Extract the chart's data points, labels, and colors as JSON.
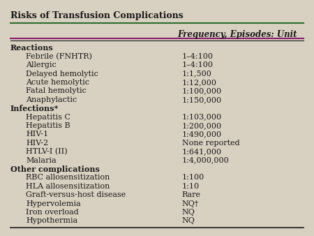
{
  "title": "Risks of Transfusion Complications",
  "header": "Frequency, Episodes: Unit",
  "background_color": "#d8d0c0",
  "rows": [
    {
      "label": "Reactions",
      "value": "",
      "indent": 0,
      "bold": true
    },
    {
      "label": "Febrile (FNHTR)",
      "value": "1–4:100",
      "indent": 1,
      "bold": false
    },
    {
      "label": "Allergic",
      "value": "1–4:100",
      "indent": 1,
      "bold": false
    },
    {
      "label": "Delayed hemolytic",
      "value": "1:1,500",
      "indent": 1,
      "bold": false
    },
    {
      "label": "Acute hemolytic",
      "value": "1:12,000",
      "indent": 1,
      "bold": false
    },
    {
      "label": "Fatal hemolytic",
      "value": "1:100,000",
      "indent": 1,
      "bold": false
    },
    {
      "label": "Anaphylactic",
      "value": "1:150,000",
      "indent": 1,
      "bold": false
    },
    {
      "label": "Infections*",
      "value": "",
      "indent": 0,
      "bold": true
    },
    {
      "label": "Hepatitis C",
      "value": "1:103,000",
      "indent": 1,
      "bold": false
    },
    {
      "label": "Hepatitis B",
      "value": "1:200,000",
      "indent": 1,
      "bold": false
    },
    {
      "label": "HIV-1",
      "value": "1:490,000",
      "indent": 1,
      "bold": false
    },
    {
      "label": "HIV-2",
      "value": "None reported",
      "indent": 1,
      "bold": false
    },
    {
      "label": "HTLV-I (II)",
      "value": "1:641,000",
      "indent": 1,
      "bold": false
    },
    {
      "label": "Malaria",
      "value": "1:4,000,000",
      "indent": 1,
      "bold": false
    },
    {
      "label": "Other complications",
      "value": "",
      "indent": 0,
      "bold": true
    },
    {
      "label": "RBC allosensitization",
      "value": "1:100",
      "indent": 1,
      "bold": false
    },
    {
      "label": "HLA allosensitization",
      "value": "1:10",
      "indent": 1,
      "bold": false
    },
    {
      "label": "Graft-versus-host disease",
      "value": "Rare",
      "indent": 1,
      "bold": false
    },
    {
      "label": "Hypervolemia",
      "value": "NQ†",
      "indent": 1,
      "bold": false
    },
    {
      "label": "Iron overload",
      "value": "NQ",
      "indent": 1,
      "bold": false
    },
    {
      "label": "Hypothermia",
      "value": "NQ",
      "indent": 1,
      "bold": false
    }
  ],
  "title_fontsize": 9,
  "header_fontsize": 8.5,
  "row_fontsize": 8,
  "text_color": "#1a1a1a",
  "line_color_top": "#2d6e2d",
  "line_color_header": "#8b1a6b",
  "line_color_bottom": "#1a1a1a"
}
